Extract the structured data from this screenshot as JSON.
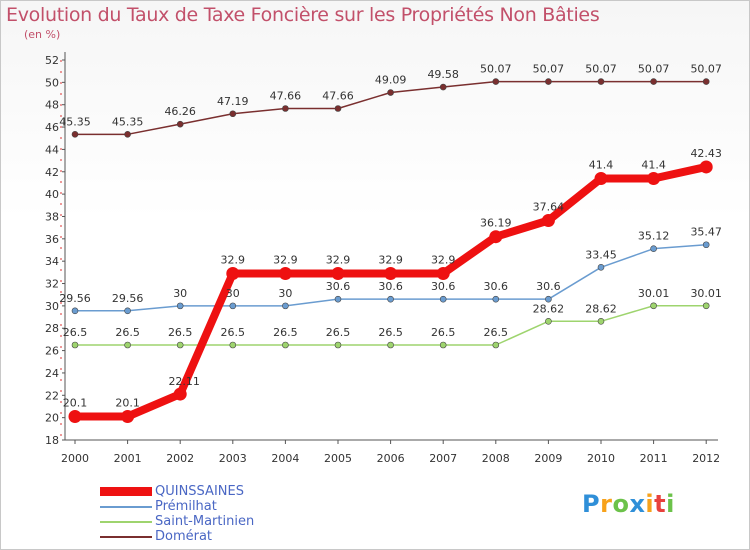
{
  "header": {
    "title": "Evolution du Taux de Taxe Foncière sur les Propriétés Non Bâties",
    "unit": "(en %)"
  },
  "chart_data": {
    "type": "line",
    "title": "Evolution du Taux de Taxe Foncière sur les Propriétés Non Bâties",
    "ylabel": "(en %)",
    "xlabel": "",
    "ylim": [
      18,
      52
    ],
    "y_ticks": [
      "18",
      "20",
      "22",
      "24",
      "26",
      "28",
      "30",
      "32",
      "34",
      "36",
      "38",
      "40",
      "42",
      "44",
      "46",
      "48",
      "50",
      "52"
    ],
    "x": [
      "2000",
      "2001",
      "2002",
      "2003",
      "2004",
      "2005",
      "2006",
      "2007",
      "2008",
      "2009",
      "2010",
      "2011",
      "2012"
    ],
    "series": [
      {
        "name": "QUINSSAINES",
        "color": "#ee1111",
        "emphasis": true,
        "values": [
          20.1,
          20.1,
          22.11,
          32.9,
          32.9,
          32.9,
          32.9,
          32.9,
          36.19,
          37.64,
          41.4,
          41.4,
          42.43
        ],
        "labels": [
          "20.1",
          "20.1",
          "22.11",
          "32.9",
          "32.9",
          "32.9",
          "32.9",
          "32.9",
          "36.19",
          "37.64",
          "41.4",
          "41.4",
          "42.43"
        ]
      },
      {
        "name": "Prémilhat",
        "color": "#6a9cd0",
        "values": [
          29.56,
          29.56,
          30,
          30,
          30,
          30.6,
          30.6,
          30.6,
          30.6,
          30.6,
          33.45,
          35.12,
          35.47
        ],
        "labels": [
          "29.56",
          "29.56",
          "30",
          "30",
          "30",
          "30.6",
          "30.6",
          "30.6",
          "30.6",
          "30.6",
          "33.45",
          "35.12",
          "35.47"
        ]
      },
      {
        "name": "Saint-Martinien",
        "color": "#9ed46e",
        "values": [
          26.5,
          26.5,
          26.5,
          26.5,
          26.5,
          26.5,
          26.5,
          26.5,
          26.5,
          28.62,
          28.62,
          30.01,
          30.01
        ],
        "labels": [
          "26.5",
          "26.5",
          "26.5",
          "26.5",
          "26.5",
          "26.5",
          "26.5",
          "26.5",
          "26.5",
          "28.62",
          "28.62",
          "30.01",
          "30.01"
        ]
      },
      {
        "name": "Domérat",
        "color": "#7a2f2f",
        "values": [
          45.35,
          45.35,
          46.26,
          47.19,
          47.66,
          47.66,
          49.09,
          49.58,
          50.07,
          50.07,
          50.07,
          50.07,
          50.07
        ],
        "labels": [
          "45.35",
          "45.35",
          "46.26",
          "47.19",
          "47.66",
          "47.66",
          "49.09",
          "49.58",
          "50.07",
          "50.07",
          "50.07",
          "50.07",
          "50.07"
        ]
      }
    ],
    "grid": false,
    "legend": "bottom-left"
  },
  "logo": {
    "letters": [
      "P",
      "r",
      "o",
      "x",
      "i",
      "t",
      "i"
    ],
    "colors": [
      "#2f8fd8",
      "#f7a21b",
      "#6cc24a",
      "#2f8fd8",
      "#f7a21b",
      "#e8413c",
      "#6cc24a"
    ]
  }
}
